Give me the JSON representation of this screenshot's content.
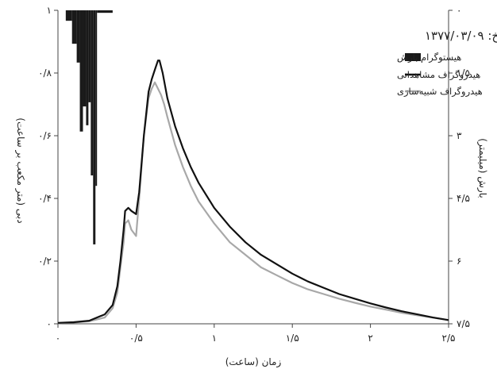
{
  "chart_data": {
    "type": "line",
    "annotation": "تاریخ: ۱۳۷۷/۰۳/۰۹",
    "xlabel": "زمان (ساعت)",
    "ylabel_left": "دبی (متر مکعب بر ساعت)",
    "ylabel_right": "بارش (میلیمتر)",
    "xlim": [
      0,
      2.5
    ],
    "ylim_left": [
      0,
      1
    ],
    "ylim_right": [
      0,
      7.5
    ],
    "right_axis_inverted": true,
    "x_ticks": [
      {
        "value": 0,
        "label": "۰"
      },
      {
        "value": 0.5,
        "label": "۰/۵"
      },
      {
        "value": 1,
        "label": "۱"
      },
      {
        "value": 1.5,
        "label": "۱/۵"
      },
      {
        "value": 2,
        "label": "۲"
      },
      {
        "value": 2.5,
        "label": "۲/۵"
      }
    ],
    "y_left_ticks": [
      {
        "value": 0,
        "label": "۰"
      },
      {
        "value": 0.2,
        "label": "۰/۲"
      },
      {
        "value": 0.4,
        "label": "۰/۴"
      },
      {
        "value": 0.6,
        "label": "۰/۶"
      },
      {
        "value": 0.8,
        "label": "۰/۸"
      },
      {
        "value": 1,
        "label": "۱"
      }
    ],
    "y_right_ticks": [
      {
        "value": 0,
        "label": "۰"
      },
      {
        "value": 1.5,
        "label": "۱/۵"
      },
      {
        "value": 3,
        "label": "۳"
      },
      {
        "value": 4.5,
        "label": "۴/۵"
      },
      {
        "value": 6,
        "label": "۶"
      },
      {
        "value": 7.5,
        "label": "۷/۵"
      }
    ],
    "series": [
      {
        "name": "هیستوگرام بارش",
        "kind": "histogram",
        "color": "#1a1a1a",
        "bars": [
          {
            "x0": 0.05,
            "x1": 0.09,
            "value": 0.25
          },
          {
            "x0": 0.09,
            "x1": 0.12,
            "value": 0.8
          },
          {
            "x0": 0.12,
            "x1": 0.14,
            "value": 1.25
          },
          {
            "x0": 0.14,
            "x1": 0.16,
            "value": 2.9
          },
          {
            "x0": 0.16,
            "x1": 0.18,
            "value": 2.3
          },
          {
            "x0": 0.18,
            "x1": 0.195,
            "value": 2.75
          },
          {
            "x0": 0.195,
            "x1": 0.21,
            "value": 2.2
          },
          {
            "x0": 0.21,
            "x1": 0.225,
            "value": 3.95
          },
          {
            "x0": 0.225,
            "x1": 0.24,
            "value": 5.6
          },
          {
            "x0": 0.24,
            "x1": 0.25,
            "value": 4.2
          },
          {
            "x0": 0.25,
            "x1": 0.35,
            "value": 0.06
          }
        ]
      },
      {
        "name": "هیدروگراف مشاهداتی",
        "kind": "line",
        "color": "#111111",
        "x": [
          0,
          0.1,
          0.2,
          0.3,
          0.35,
          0.38,
          0.4,
          0.42,
          0.43,
          0.45,
          0.47,
          0.5,
          0.52,
          0.55,
          0.58,
          0.6,
          0.62,
          0.64,
          0.65,
          0.67,
          0.7,
          0.75,
          0.8,
          0.85,
          0.9,
          1.0,
          1.1,
          1.2,
          1.3,
          1.4,
          1.5,
          1.6,
          1.7,
          1.8,
          1.9,
          2.0,
          2.1,
          2.2,
          2.3,
          2.4,
          2.5
        ],
        "y": [
          0.003,
          0.005,
          0.01,
          0.03,
          0.06,
          0.12,
          0.2,
          0.3,
          0.36,
          0.37,
          0.36,
          0.35,
          0.42,
          0.6,
          0.74,
          0.78,
          0.81,
          0.84,
          0.84,
          0.8,
          0.72,
          0.63,
          0.56,
          0.5,
          0.45,
          0.37,
          0.31,
          0.26,
          0.22,
          0.19,
          0.16,
          0.135,
          0.115,
          0.095,
          0.08,
          0.065,
          0.052,
          0.04,
          0.03,
          0.02,
          0.012
        ]
      },
      {
        "name": "هیدروگراف شبیه‌سازی",
        "kind": "line",
        "color": "#a8a8a8",
        "x": [
          0,
          0.1,
          0.2,
          0.3,
          0.35,
          0.38,
          0.4,
          0.42,
          0.43,
          0.45,
          0.47,
          0.5,
          0.52,
          0.55,
          0.58,
          0.6,
          0.62,
          0.64,
          0.66,
          0.68,
          0.7,
          0.75,
          0.8,
          0.85,
          0.9,
          1.0,
          1.1,
          1.2,
          1.3,
          1.4,
          1.5,
          1.6,
          1.7,
          1.8,
          1.9,
          2.0,
          2.1,
          2.2,
          2.3,
          2.4,
          2.5
        ],
        "y": [
          0.002,
          0.004,
          0.008,
          0.02,
          0.05,
          0.1,
          0.18,
          0.26,
          0.32,
          0.33,
          0.3,
          0.28,
          0.4,
          0.6,
          0.72,
          0.75,
          0.77,
          0.75,
          0.73,
          0.7,
          0.66,
          0.57,
          0.5,
          0.44,
          0.39,
          0.32,
          0.26,
          0.22,
          0.18,
          0.155,
          0.13,
          0.11,
          0.095,
          0.08,
          0.067,
          0.055,
          0.045,
          0.035,
          0.027,
          0.02,
          0.012
        ]
      }
    ]
  }
}
